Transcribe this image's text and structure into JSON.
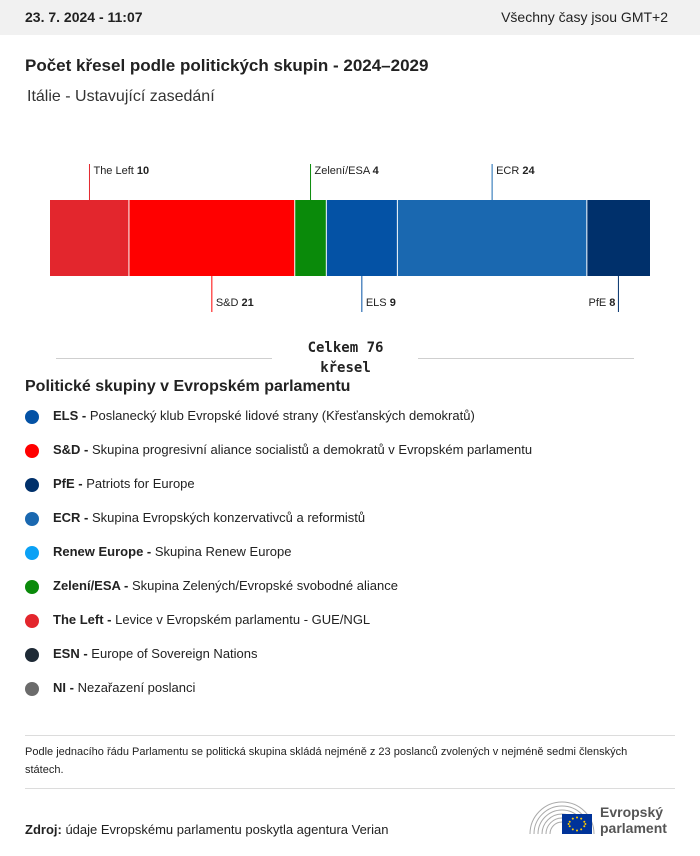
{
  "header": {
    "date": "23. 7. 2024 - 11:07",
    "timezone": "Všechny časy jsou GMT+2"
  },
  "title": "Počet křesel podle politických skupin - 2024–2029",
  "subtitle": "Itálie - Ustavující zasedání",
  "chart_data": {
    "type": "bar",
    "orientation": "stacked-horizontal",
    "categories": [
      "The Left",
      "S&D",
      "Zelení/ESA",
      "ELS",
      "ECR",
      "PfE"
    ],
    "values": [
      10,
      21,
      4,
      9,
      24,
      8
    ],
    "label_side": [
      "top",
      "bottom",
      "top",
      "bottom",
      "top",
      "bottom"
    ],
    "colors": [
      "#e3262d",
      "#ff0000",
      "#0a8a0a",
      "#0452a5",
      "#1a68b0",
      "#00306b"
    ]
  },
  "total": {
    "line1": "Celkem 76",
    "line2": "křesel"
  },
  "legend": {
    "title": "Politické skupiny v Evropském parlamentu",
    "items": [
      {
        "abbr": "ELS -",
        "desc": "Poslanecký klub Evropské lidové strany (Křesťanských demokratů)",
        "color": "#0452a5"
      },
      {
        "abbr": "S&D -",
        "desc": "Skupina progresivní aliance socialistů a demokratů v Evropském parlamentu",
        "color": "#ff0000"
      },
      {
        "abbr": "PfE -",
        "desc": "Patriots for Europe",
        "color": "#00306b"
      },
      {
        "abbr": "ECR -",
        "desc": "Skupina Evropských konzervativců a reformistů",
        "color": "#1a68b0"
      },
      {
        "abbr": "Renew Europe -",
        "desc": "Skupina Renew Europe",
        "color": "#0ba1f5"
      },
      {
        "abbr": "Zelení/ESA -",
        "desc": "Skupina Zelených/Evropské svobodné aliance",
        "color": "#0a8a0a"
      },
      {
        "abbr": "The Left -",
        "desc": "Levice v Evropském parlamentu - GUE/NGL",
        "color": "#e3262d"
      },
      {
        "abbr": "ESN -",
        "desc": "Europe of Sovereign Nations",
        "color": "#1e2a36"
      },
      {
        "abbr": "NI -",
        "desc": "Nezařazení poslanci",
        "color": "#6b6b6b"
      }
    ]
  },
  "note": "Podle jednacího řádu Parlamentu se politická skupina skládá nejméně z 23 poslanců zvolených v nejméně sedmi členských státech.",
  "source": {
    "label": "Zdroj:",
    "text": "údaje Evropskému parlamentu poskytla agentura Verian"
  },
  "logo": {
    "line1": "Evropský",
    "line2": "parlament"
  }
}
